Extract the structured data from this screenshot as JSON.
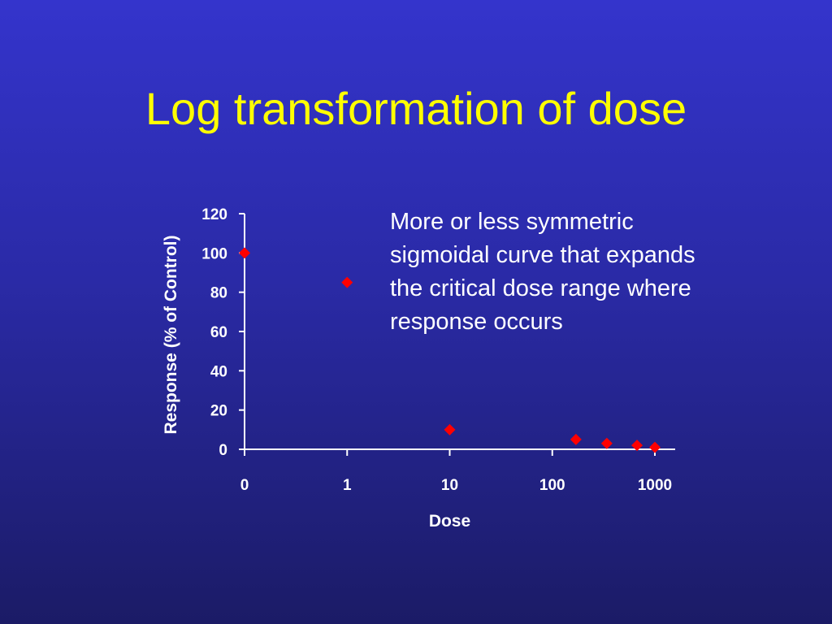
{
  "slide": {
    "title": "Log transformation of dose",
    "annotation": "More or less symmetric sigmoidal curve that expands the critical dose range where response occurs"
  },
  "colors": {
    "background": "#2f2fb8",
    "title": "#ffff00",
    "text": "#ffffff",
    "axis": "#ffffff",
    "marker": "#ff0000"
  },
  "chart_data": {
    "type": "scatter",
    "xlabel": "Dose",
    "ylabel": "Response (% of Control)",
    "x_scale": "log",
    "x_tick_labels": [
      "0",
      "1",
      "10",
      "100",
      "1000"
    ],
    "x_ticks": [
      0.1,
      1,
      10,
      100,
      1000
    ],
    "xlim": [
      0.1,
      1000
    ],
    "y_ticks": [
      0,
      20,
      40,
      60,
      80,
      100,
      120
    ],
    "ylim": [
      0,
      120
    ],
    "marker": "diamond",
    "grid": false,
    "legend": "none",
    "points": [
      {
        "x": 0.1,
        "y": 100
      },
      {
        "x": 1,
        "y": 85
      },
      {
        "x": 10,
        "y": 10
      },
      {
        "x": 170,
        "y": 5
      },
      {
        "x": 340,
        "y": 3
      },
      {
        "x": 670,
        "y": 2
      },
      {
        "x": 1000,
        "y": 1
      }
    ]
  }
}
